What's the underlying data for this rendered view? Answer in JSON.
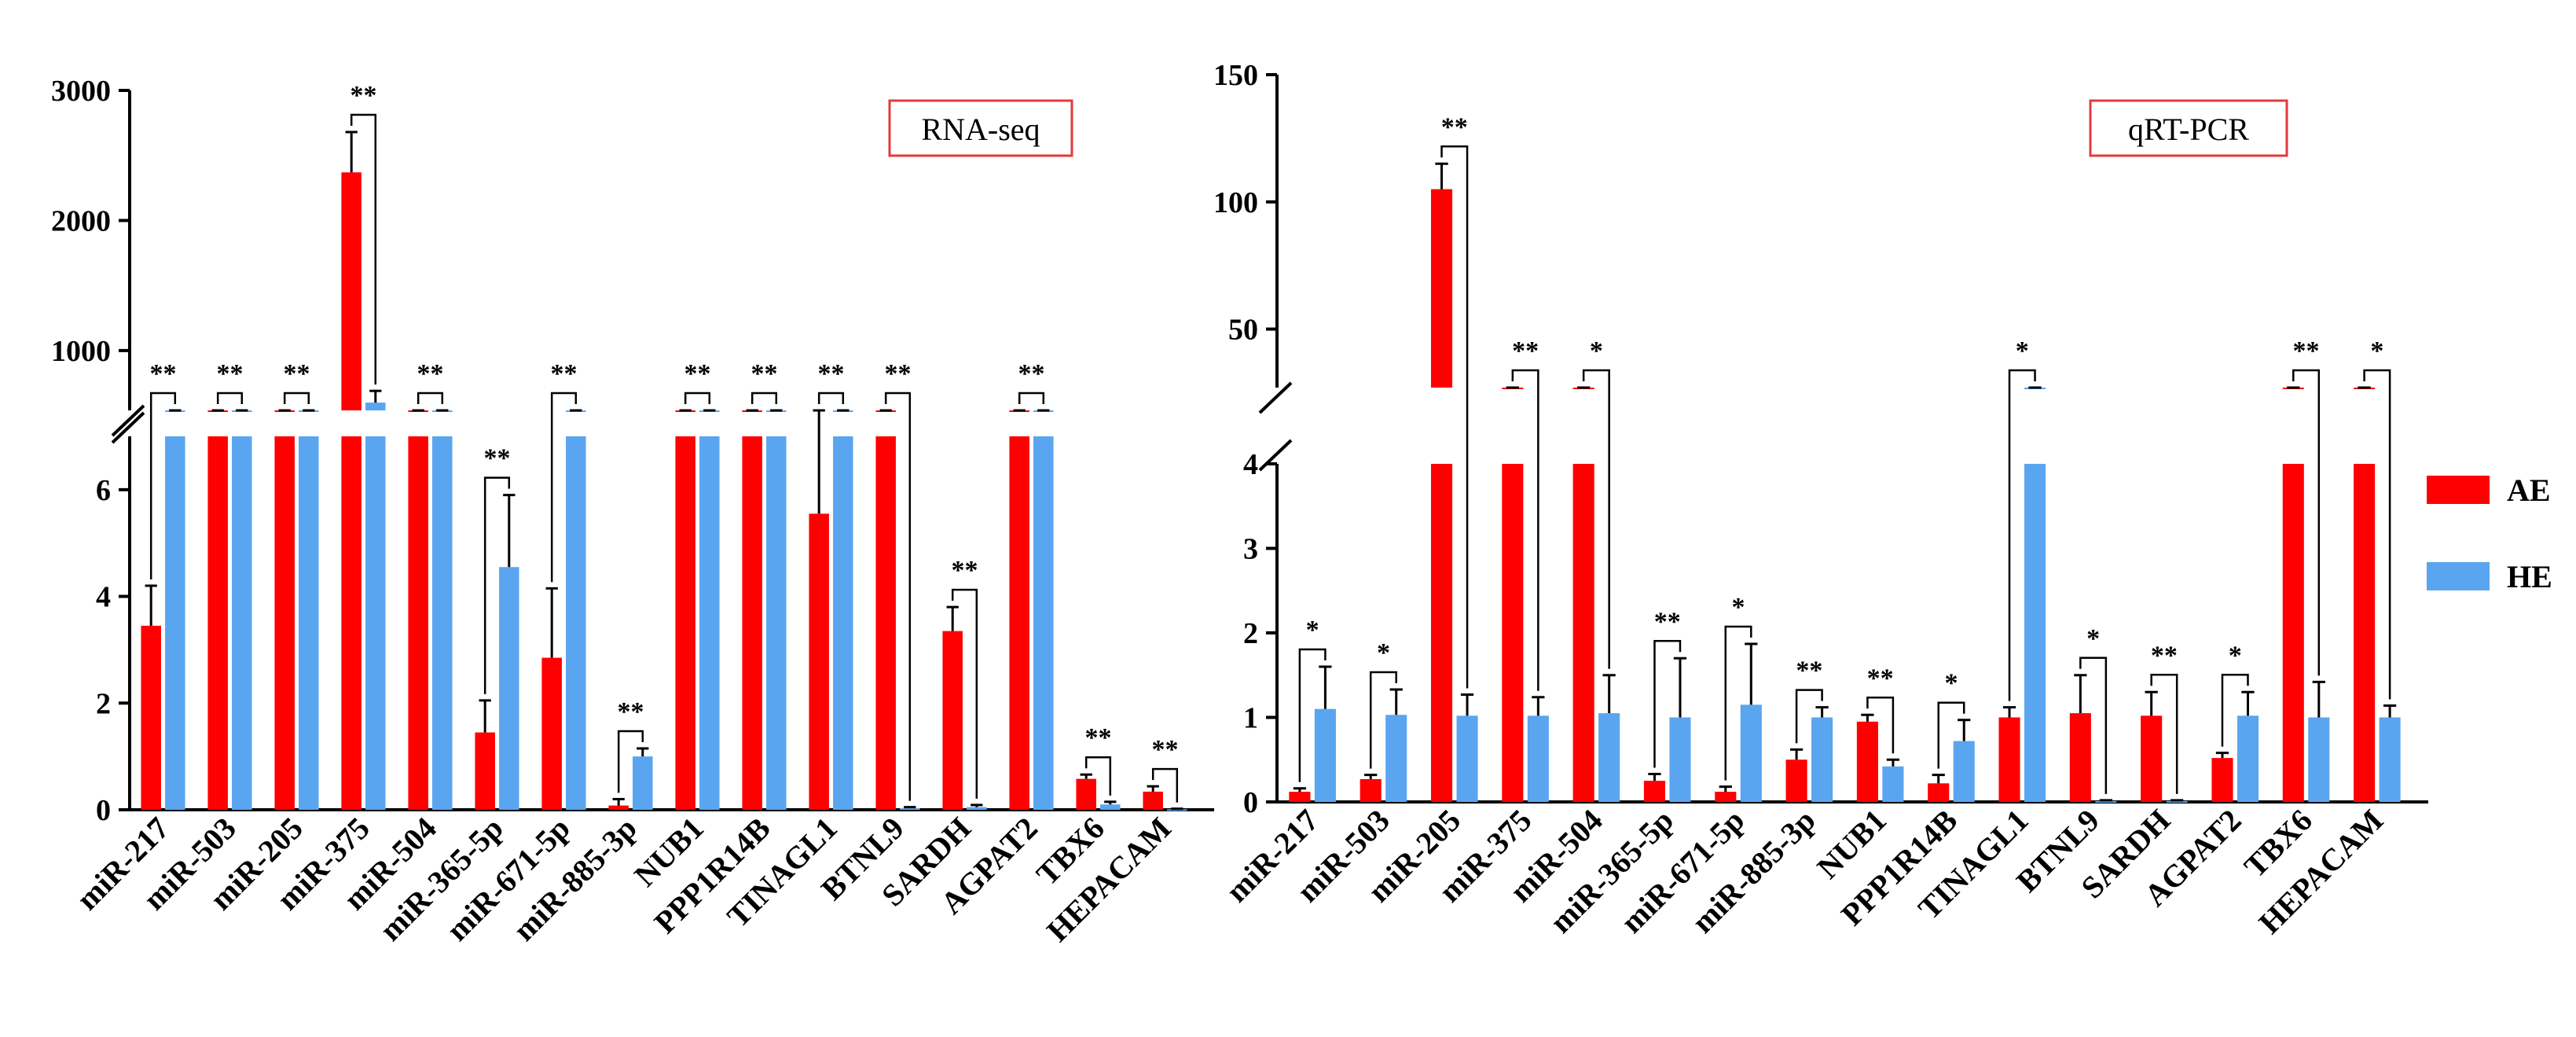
{
  "colors": {
    "AE": "#ff0000",
    "HE": "#5aa5ef",
    "axis": "#000000",
    "bracket": "#000000",
    "title_border": "#e43a3a"
  },
  "legend": {
    "placement": "right",
    "items": [
      {
        "key": "AE",
        "label": "AE"
      },
      {
        "key": "HE",
        "label": "HE"
      }
    ]
  },
  "chart_data": [
    {
      "type": "bar",
      "title": "RNA-seq",
      "xlabel": "",
      "ylabel": "",
      "broken_y_axis": true,
      "y_segments": [
        {
          "range": [
            0,
            7
          ],
          "ticks": [
            0,
            2,
            4,
            6
          ]
        },
        {
          "range": [
            0,
            3000
          ],
          "ticks": [
            1000,
            2000,
            3000
          ]
        }
      ],
      "categories": [
        "miR-217",
        "miR-503",
        "miR-205",
        "miR-375",
        "miR-504",
        "miR-365-5p",
        "miR-671-5p",
        "miR-885-3p",
        "NUB1",
        "PPP1R14B",
        "TINAGL1",
        "BTNL9",
        "SARDH",
        "AGPAT2",
        "TBX6",
        "HEPACAM"
      ],
      "series": [
        {
          "name": "AE",
          "values": [
            3.45,
            30,
            80,
            2370,
            340,
            1.45,
            2.85,
            0.08,
            20,
            35,
            5.55,
            8,
            3.35,
            20,
            0.58,
            0.34
          ],
          "errors": [
            0.75,
            8,
            20,
            310,
            80,
            0.6,
            1.3,
            0.12,
            5,
            8,
            1.5,
            2,
            0.45,
            5,
            0.08,
            0.1
          ]
        },
        {
          "name": "HE",
          "values": [
            50,
            220,
            40,
            600,
            60,
            4.55,
            30,
            1.0,
            20,
            80,
            70,
            0.03,
            0.05,
            60,
            0.1,
            0.01
          ],
          "errors": [
            10,
            100,
            10,
            90,
            15,
            1.35,
            5,
            0.15,
            5,
            15,
            15,
            0.02,
            0.04,
            15,
            0.05,
            0.01
          ]
        }
      ],
      "significance": [
        "**",
        "**",
        "**",
        "**",
        "**",
        "**",
        "**",
        "**",
        "**",
        "**",
        "**",
        "**",
        "**",
        "**",
        "**",
        "**"
      ]
    },
    {
      "type": "bar",
      "title": "qRT-PCR",
      "xlabel": "",
      "ylabel": "",
      "broken_y_axis": true,
      "y_segments": [
        {
          "range": [
            0,
            4
          ],
          "ticks": [
            0,
            1,
            2,
            3,
            4
          ]
        },
        {
          "range": [
            0,
            150
          ],
          "ticks": [
            50,
            100,
            150
          ]
        }
      ],
      "categories": [
        "miR-217",
        "miR-503",
        "miR-205",
        "miR-375",
        "miR-504",
        "miR-365-5p",
        "miR-671-5p",
        "miR-885-3p",
        "NUB1",
        "PPP1R14B",
        "TINAGL1",
        "BTNL9",
        "SARDH",
        "AGPAT2",
        "TBX6",
        "HEPACAM"
      ],
      "series": [
        {
          "name": "AE",
          "values": [
            0.12,
            0.27,
            105,
            22,
            18,
            0.25,
            0.12,
            0.5,
            0.95,
            0.22,
            1.0,
            1.05,
            1.02,
            0.52,
            13,
            10
          ],
          "errors": [
            0.04,
            0.05,
            10,
            2,
            5,
            0.08,
            0.06,
            0.12,
            0.08,
            0.1,
            0.12,
            0.45,
            0.28,
            0.06,
            1.5,
            1.5
          ]
        },
        {
          "name": "HE",
          "values": [
            1.1,
            1.03,
            1.02,
            1.02,
            1.05,
            1.0,
            1.15,
            1.0,
            0.42,
            0.72,
            18,
            0.01,
            0.01,
            1.02,
            1.0,
            1.0
          ],
          "errors": [
            0.5,
            0.3,
            0.25,
            0.22,
            0.45,
            0.7,
            0.72,
            0.12,
            0.08,
            0.25,
            4,
            0.01,
            0.01,
            0.28,
            0.42,
            0.14
          ]
        }
      ],
      "significance": [
        "*",
        "*",
        "**",
        "**",
        "*",
        "**",
        "*",
        "**",
        "**",
        "*",
        "*",
        "*",
        "**",
        "*",
        "**",
        "*"
      ]
    }
  ]
}
